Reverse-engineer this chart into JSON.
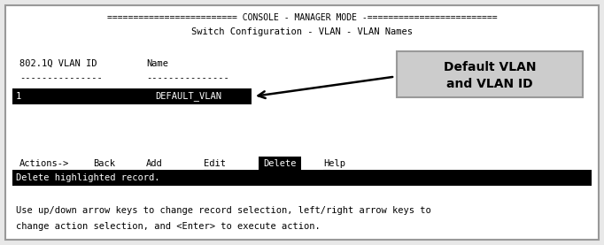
{
  "bg_color": "#e8e8e8",
  "border_color": "#999999",
  "inner_bg_color": "#ffffff",
  "title_line": "========================= CONSOLE - MANAGER MODE -=========================",
  "subtitle_line": "Switch Configuration - VLAN - VLAN Names",
  "col_header_1": "802.1Q VLAN ID",
  "col_header_2": "Name",
  "dash_line_1": "---------------",
  "dash_line_2": "---------------",
  "row_id": "1",
  "row_name": "DEFAULT_VLAN",
  "row_highlight_color": "#000000",
  "row_highlight_text_color": "#ffffff",
  "actions_label": "Actions->",
  "actions_items": [
    "Back",
    "Add",
    "Edit",
    "Delete",
    "Help"
  ],
  "delete_btn_bg": "#000000",
  "delete_btn_fg": "#ffffff",
  "status_bar_bg": "#000000",
  "status_bar_fg": "#ffffff",
  "status_line1": "Delete highlighted record.",
  "status_line2": "Use up/down arrow keys to change record selection, left/right arrow keys to",
  "status_line3": "change action selection, and <Enter> to execute action.",
  "callout_text_line1": "Default VLAN",
  "callout_text_line2": "and VLAN ID",
  "callout_bg": "#cccccc",
  "callout_border": "#999999"
}
